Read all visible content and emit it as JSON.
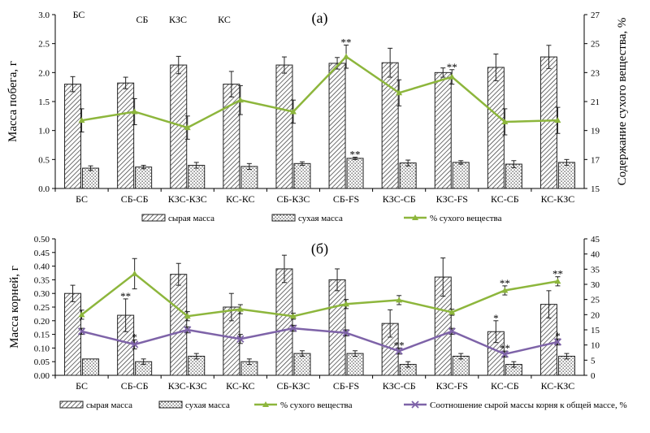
{
  "chart_data": [
    {
      "type": "bar",
      "panel_label": "(а)",
      "categories": [
        "БС",
        "СБ-СБ",
        "КЗС-КЗС",
        "КС-КС",
        "СБ-КЗС",
        "СБ-FS",
        "КЗС-СБ",
        "КЗС-FS",
        "КС-СБ",
        "КС-КЗС"
      ],
      "ylabel": "Масса побега, г",
      "y2label": "Содержание сухого вещества, %",
      "ylim": [
        0,
        3.0
      ],
      "y2lim": [
        15,
        27
      ],
      "yticks": [
        "0.0",
        "0.5",
        "1.0",
        "1.5",
        "2.0",
        "2.5",
        "3.0"
      ],
      "y2ticks": [
        "15",
        "17",
        "19",
        "21",
        "23",
        "25",
        "27"
      ],
      "top_labels": [
        "БС",
        "СБ",
        "КЗС",
        "КС"
      ],
      "series": [
        {
          "name": "сырая масса",
          "kind": "bar",
          "axis": "left",
          "values": [
            1.8,
            1.82,
            2.13,
            1.8,
            2.13,
            2.16,
            2.17,
            2.0,
            2.09,
            2.27
          ],
          "errors": [
            0.13,
            0.1,
            0.15,
            0.22,
            0.14,
            0.1,
            0.25,
            0.08,
            0.23,
            0.2
          ]
        },
        {
          "name": "сухая масса",
          "kind": "bar",
          "axis": "left",
          "values": [
            0.35,
            0.37,
            0.4,
            0.38,
            0.43,
            0.52,
            0.44,
            0.45,
            0.42,
            0.45
          ],
          "errors": [
            0.04,
            0.03,
            0.05,
            0.05,
            0.03,
            0.02,
            0.05,
            0.03,
            0.06,
            0.05
          ]
        },
        {
          "name": "% сухого вещества",
          "kind": "line",
          "axis": "right",
          "values": [
            19.7,
            20.3,
            19.2,
            21.1,
            20.3,
            24.1,
            21.6,
            22.7,
            19.6,
            19.7
          ],
          "errors": [
            0.8,
            0.9,
            0.8,
            1.0,
            0.8,
            0.8,
            0.9,
            0.5,
            0.9,
            0.9
          ]
        }
      ],
      "annotations": [
        {
          "category": "СБ-FS",
          "series": "% сухого вещества",
          "text": "**"
        },
        {
          "category": "СБ-FS",
          "series": "сухая масса",
          "text": "**"
        },
        {
          "category": "КЗС-FS",
          "series": "% сухого вещества",
          "text": "**"
        }
      ],
      "legend": [
        "сырая масса",
        "сухая масса",
        "% сухого вещества"
      ],
      "legend_position": "bottom",
      "colors": {
        "line": "#8DB63C",
        "bar_fresh": "#ffffff",
        "bar_dry": "#ffffff"
      }
    },
    {
      "type": "bar",
      "panel_label": "(б)",
      "categories": [
        "БС",
        "СБ-СБ",
        "КЗС-КЗС",
        "КС-КС",
        "СБ-КЗС",
        "СБ-FS",
        "КЗС-СБ",
        "КЗС-FS",
        "КС-СБ",
        "КС-КЗС"
      ],
      "ylabel": "Масса корней, г",
      "ylim": [
        0,
        0.5
      ],
      "y2lim": [
        0,
        45
      ],
      "yticks": [
        "0.00",
        "0.05",
        "0.10",
        "0.15",
        "0.20",
        "0.25",
        "0.30",
        "0.35",
        "0.40",
        "0.45",
        "0.50"
      ],
      "y2ticks": [
        "0",
        "5",
        "10",
        "15",
        "20",
        "25",
        "30",
        "35",
        "40",
        "45"
      ],
      "series": [
        {
          "name": "сырая масса",
          "kind": "bar",
          "axis": "left",
          "values": [
            0.3,
            0.22,
            0.37,
            0.25,
            0.39,
            0.35,
            0.19,
            0.36,
            0.16,
            0.26
          ],
          "errors": [
            0.03,
            0.06,
            0.04,
            0.05,
            0.05,
            0.04,
            0.05,
            0.07,
            0.04,
            0.05
          ]
        },
        {
          "name": "сухая масса",
          "kind": "bar",
          "axis": "left",
          "values": [
            0.06,
            0.05,
            0.07,
            0.05,
            0.08,
            0.08,
            0.04,
            0.07,
            0.04,
            0.07
          ],
          "errors": [
            0.0,
            0.01,
            0.01,
            0.01,
            0.01,
            0.01,
            0.01,
            0.01,
            0.01,
            0.01
          ]
        },
        {
          "name": "% сухого вещества",
          "kind": "line",
          "axis": "right",
          "values": [
            20.0,
            33.5,
            19.5,
            21.8,
            19.5,
            23.5,
            24.8,
            20.8,
            28.0,
            31.0
          ],
          "errors": [
            1.5,
            5.0,
            1.5,
            1.5,
            1.0,
            1.5,
            1.5,
            1.0,
            1.5,
            1.5
          ]
        },
        {
          "name": "Соотношение сырой массы корня к общей массе,  %",
          "kind": "line",
          "axis": "right",
          "values": [
            14.5,
            10.2,
            15.0,
            12.0,
            15.5,
            14.0,
            8.0,
            14.5,
            7.0,
            11.0
          ],
          "errors": [
            1.0,
            1.5,
            1.0,
            1.5,
            1.0,
            1.0,
            1.0,
            1.0,
            1.0,
            1.0
          ]
        }
      ],
      "annotations": [
        {
          "category": "СБ-СБ",
          "series": "сырая масса",
          "text": "**"
        },
        {
          "category": "СБ-СБ",
          "series": "Соотношение сырой массы корня к общей массе,  %",
          "text": "*"
        },
        {
          "category": "КЗС-СБ",
          "series": "Соотношение сырой массы корня к общей массе,  %",
          "text": "**"
        },
        {
          "category": "КС-СБ",
          "series": "сырая масса",
          "text": "*"
        },
        {
          "category": "КС-СБ",
          "series": "% сухого вещества",
          "text": "**"
        },
        {
          "category": "КС-СБ",
          "series": "Соотношение сырой массы корня к общей массе,  %",
          "text": "**"
        },
        {
          "category": "КС-КЗС",
          "series": "% сухого вещества",
          "text": "**"
        },
        {
          "category": "КС-КЗС",
          "series": "Соотношение сырой массы корня к общей массе,  %",
          "text": "*"
        }
      ],
      "legend": [
        "сырая масса",
        "сухая масса",
        "% сухого вещества",
        "Соотношение сырой массы корня к общей массе,  %"
      ],
      "legend_position": "bottom",
      "colors": {
        "line_green": "#8DB63C",
        "line_purple": "#7E63A8"
      }
    }
  ]
}
